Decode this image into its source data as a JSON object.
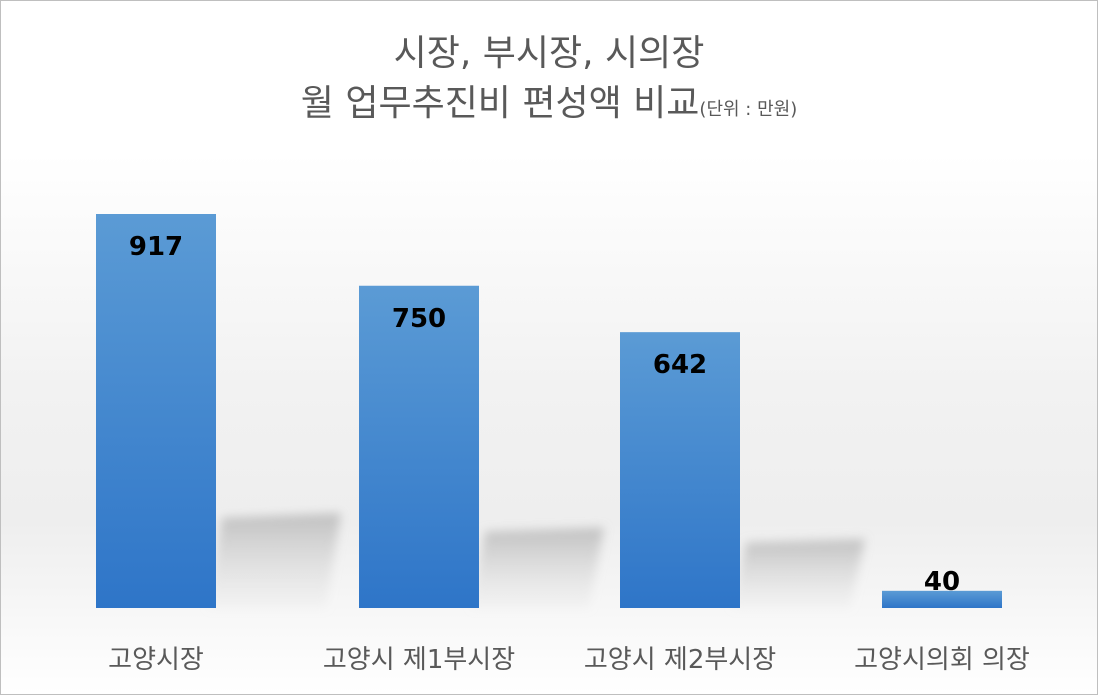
{
  "chart_data": {
    "type": "bar",
    "title_line1": "시장, 부시장, 시의장",
    "title_line2": "월 업무추진비 편성액 비교",
    "title_unit": "(단위 : 만원)",
    "categories": [
      "고양시장",
      "고양시 제1부시장",
      "고양시 제2부시장",
      "고양시의회 의장"
    ],
    "values": [
      917,
      750,
      642,
      40
    ],
    "bar_color_top": "#5b9bd5",
    "bar_color_bottom": "#2e75c8",
    "label_color": "#000000",
    "axis_text_color": "#595959",
    "ylim": [
      0,
      917
    ],
    "grid": false,
    "legend": "none"
  }
}
